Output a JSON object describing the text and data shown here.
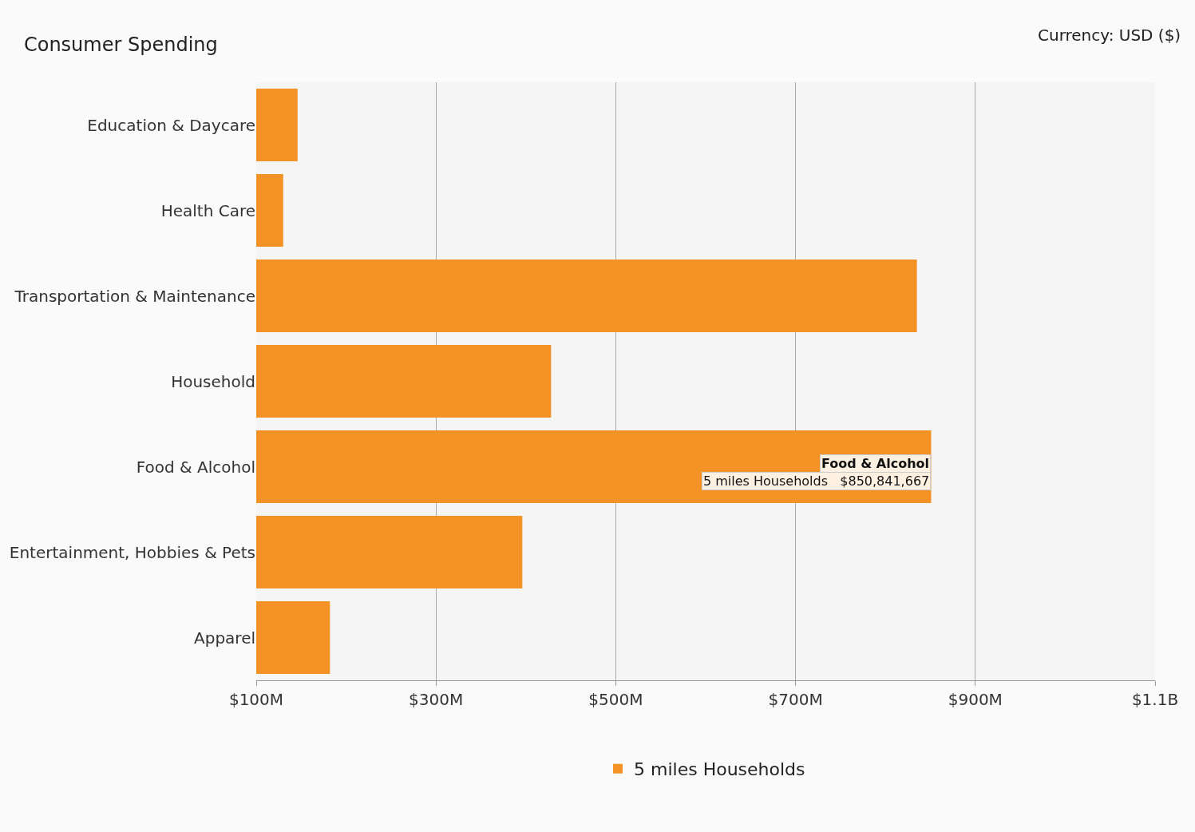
{
  "chart_data": {
    "type": "bar",
    "orientation": "horizontal",
    "title": "Consumer Spending",
    "categories": [
      "Education & Daycare",
      "Health Care",
      "Transportation & Maintenance",
      "Household",
      "Food & Alcohol",
      "Entertainment, Hobbies & Pets",
      "Apparel"
    ],
    "series": [
      {
        "name": "5 miles Households",
        "color": "#f39325",
        "values": [
          146000000,
          130000000,
          835000000,
          428000000,
          850841667,
          396000000,
          182000000
        ]
      }
    ],
    "xlim": [
      100000000,
      1100000000
    ],
    "xticks": [
      {
        "value": 100000000,
        "label": "$100M"
      },
      {
        "value": 300000000,
        "label": "$300M"
      },
      {
        "value": 500000000,
        "label": "$500M"
      },
      {
        "value": 700000000,
        "label": "$700M"
      },
      {
        "value": 900000000,
        "label": "$900M"
      },
      {
        "value": 1100000000,
        "label": "$1.1B"
      }
    ],
    "grid": "x",
    "legend": "bottom",
    "annotations": [
      "Currency: USD ($)",
      {
        "text": "Food & Alcohol",
        "x": 850841667,
        "y": "Food & Alcohol"
      },
      {
        "text": "5 miles Households   $850,841,667",
        "x": 850841667,
        "y": "Food & Alcohol"
      }
    ]
  }
}
